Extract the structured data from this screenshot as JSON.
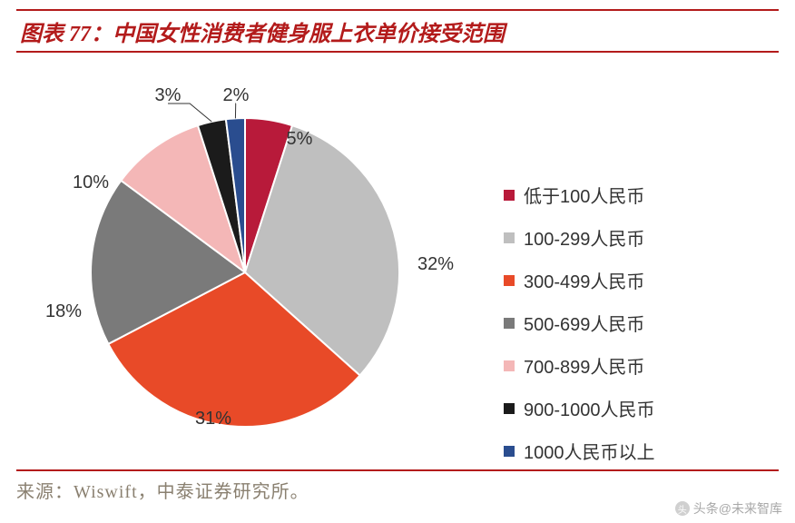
{
  "title": "图表 77：中国女性消费者健身服上衣单价接受范围",
  "source": "来源：Wiswift，中泰证券研究所。",
  "watermark": "头条@未来智库",
  "chart": {
    "type": "pie",
    "start_angle_deg": -90,
    "label_fontsize": 20,
    "legend_fontsize": 20,
    "title_color": "#b31b1b",
    "background_color": "#ffffff",
    "slices": [
      {
        "label": "低于100人民币",
        "value": 5,
        "display": "5%",
        "color": "#b81a3a"
      },
      {
        "label": "100-299人民币",
        "value": 32,
        "display": "32%",
        "color": "#bfbfbf"
      },
      {
        "label": "300-499人民币",
        "value": 31,
        "display": "31%",
        "color": "#e84a28"
      },
      {
        "label": "500-699人民币",
        "value": 18,
        "display": "18%",
        "color": "#7a7a7a"
      },
      {
        "label": "700-899人民币",
        "value": 10,
        "display": "10%",
        "color": "#f4b7b7"
      },
      {
        "label": "900-1000人民币",
        "value": 3,
        "display": "3%",
        "color": "#1b1b1b"
      },
      {
        "label": "1000人民币以上",
        "value": 2,
        "display": "2%",
        "color": "#2a4d8f"
      }
    ]
  }
}
